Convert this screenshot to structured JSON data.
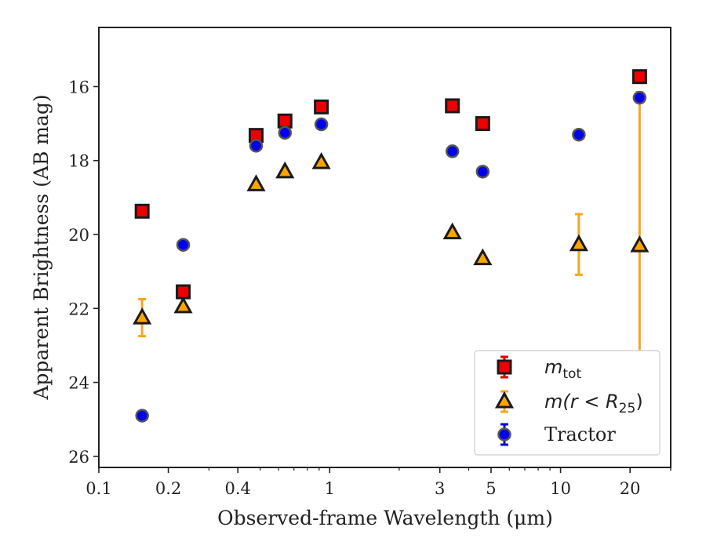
{
  "chart_data": {
    "type": "scatter",
    "title": "",
    "xlabel": "Observed-frame Wavelength (μm)",
    "ylabel": "Apparent Brightness (AB mag)",
    "xscale": "log",
    "xlim": [
      0.1,
      30
    ],
    "ylim": [
      26.3,
      14.4
    ],
    "y_inverted": true,
    "x_ticks": [
      {
        "value": 0.1,
        "label": "0.1"
      },
      {
        "value": 0.2,
        "label": "0.2"
      },
      {
        "value": 0.4,
        "label": "0.4"
      },
      {
        "value": 1,
        "label": "1"
      },
      {
        "value": 3,
        "label": "3"
      },
      {
        "value": 5,
        "label": "5"
      },
      {
        "value": 10,
        "label": "10"
      },
      {
        "value": 20,
        "label": "20"
      }
    ],
    "y_ticks": [
      {
        "value": 16,
        "label": "16"
      },
      {
        "value": 18,
        "label": "18"
      },
      {
        "value": 20,
        "label": "20"
      },
      {
        "value": 22,
        "label": "22"
      },
      {
        "value": 24,
        "label": "24"
      },
      {
        "value": 26,
        "label": "26"
      }
    ],
    "grid": false,
    "legend_position": "bottom-right",
    "series": [
      {
        "name": "m_tot",
        "marker": "square",
        "fill": "#ee0000",
        "error_color": "#dd0000",
        "points": [
          {
            "x": 0.154,
            "y": 19.37,
            "err": 0.05
          },
          {
            "x": 0.232,
            "y": 21.55,
            "err": 0.05
          },
          {
            "x": 0.48,
            "y": 17.32,
            "err": 0.05
          },
          {
            "x": 0.64,
            "y": 16.93,
            "err": 0.05
          },
          {
            "x": 0.92,
            "y": 16.55,
            "err": 0.05
          },
          {
            "x": 3.4,
            "y": 16.52,
            "err": 0.05
          },
          {
            "x": 4.6,
            "y": 17.0,
            "err": 0.05
          },
          {
            "x": 22.0,
            "y": 15.73,
            "err": 0.05
          }
        ]
      },
      {
        "name": "m(r < R25)",
        "marker": "triangle",
        "fill": "#ffa500",
        "error_color": "#f5a623",
        "points": [
          {
            "x": 0.154,
            "y": 22.25,
            "err": 0.5
          },
          {
            "x": 0.232,
            "y": 21.95,
            "err": 0.05
          },
          {
            "x": 0.48,
            "y": 18.65,
            "err": 0.05
          },
          {
            "x": 0.64,
            "y": 18.3,
            "err": 0.05
          },
          {
            "x": 0.92,
            "y": 18.05,
            "err": 0.05
          },
          {
            "x": 3.4,
            "y": 19.95,
            "err": 0.05
          },
          {
            "x": 4.6,
            "y": 20.65,
            "err": 0.05
          },
          {
            "x": 12.0,
            "y": 20.27,
            "err": 0.82
          },
          {
            "x": 22.0,
            "y": 20.3,
            "err_low": 0.0,
            "err_high": 0.0,
            "err_range": [
              16.15,
              24.5
            ]
          }
        ]
      },
      {
        "name": "Tractor",
        "marker": "circle",
        "fill": "#0000ee",
        "error_color": "#0000dd",
        "points": [
          {
            "x": 0.154,
            "y": 24.9,
            "err": 0.05
          },
          {
            "x": 0.232,
            "y": 20.28,
            "err": 0.05
          },
          {
            "x": 0.48,
            "y": 17.6,
            "err": 0.05
          },
          {
            "x": 0.64,
            "y": 17.25,
            "err": 0.05
          },
          {
            "x": 0.92,
            "y": 17.02,
            "err": 0.05
          },
          {
            "x": 3.4,
            "y": 17.75,
            "err": 0.05
          },
          {
            "x": 4.6,
            "y": 18.3,
            "err": 0.05
          },
          {
            "x": 12.0,
            "y": 17.3,
            "err": 0.05
          },
          {
            "x": 22.0,
            "y": 16.3,
            "err": 0.05
          }
        ]
      }
    ],
    "legend": [
      {
        "marker": "square",
        "label_base": "m",
        "label_sub": "tot"
      },
      {
        "marker": "triangle",
        "label_base": "m",
        "label_mid": "(r < R",
        "label_sub": "25",
        "label_end": ")"
      },
      {
        "marker": "circle",
        "label": "Tractor"
      }
    ]
  }
}
